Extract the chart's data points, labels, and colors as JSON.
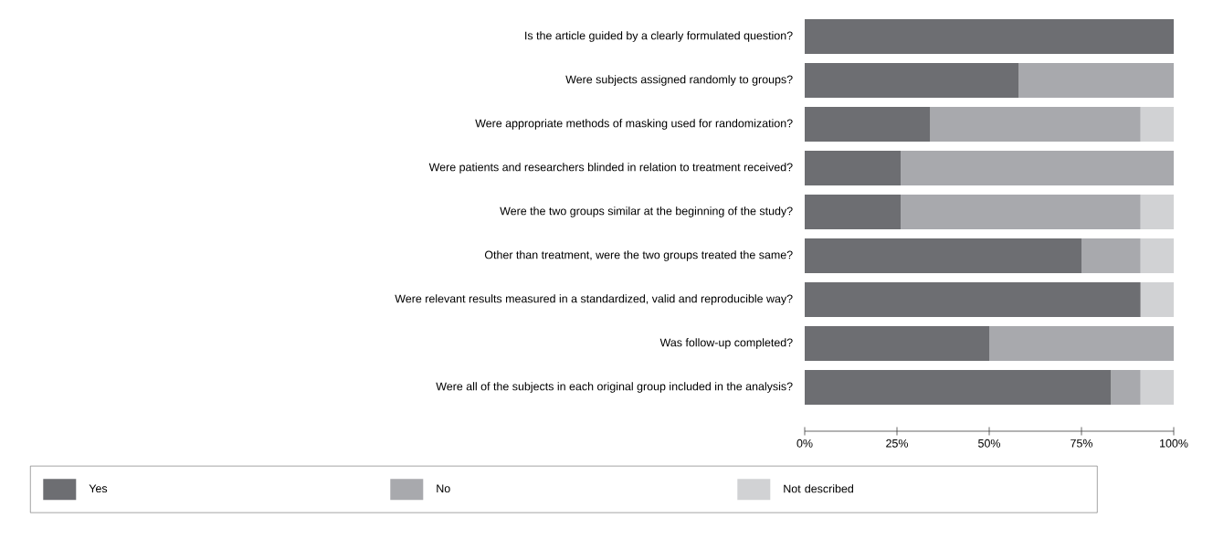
{
  "chart_data": {
    "type": "bar",
    "orientation": "horizontal",
    "stacked": true,
    "categories": [
      "Is the article guided by a clearly formulated question?",
      "Were subjects assigned randomly to groups?",
      "Were appropriate methods of masking used for randomization?",
      "Were patients and researchers blinded in relation to treatment received?",
      "Were the two groups similar at the beginning of the study?",
      "Other than treatment, were the two groups treated the same?",
      "Were relevant results measured in a standardized, valid and reproducible way?",
      "Was follow-up completed?",
      "Were all of the subjects in each original group included in the analysis?"
    ],
    "series": [
      {
        "name": "Yes",
        "color": "#6d6e72",
        "values": [
          100,
          58,
          34,
          26,
          26,
          75,
          91,
          50,
          83
        ]
      },
      {
        "name": "No",
        "color": "#a8a9ad",
        "values": [
          0,
          42,
          57,
          74,
          65,
          16,
          0,
          50,
          8
        ]
      },
      {
        "name": "Not described",
        "color": "#d1d2d4",
        "values": [
          0,
          0,
          9,
          0,
          9,
          9,
          9,
          0,
          9
        ]
      }
    ],
    "xlim": [
      0,
      100
    ],
    "xticks": [
      {
        "value": 0,
        "label": "0%"
      },
      {
        "value": 25,
        "label": "25%"
      },
      {
        "value": 50,
        "label": "50%"
      },
      {
        "value": 75,
        "label": "75%"
      },
      {
        "value": 100,
        "label": "100%"
      }
    ],
    "legend": "bottom"
  }
}
